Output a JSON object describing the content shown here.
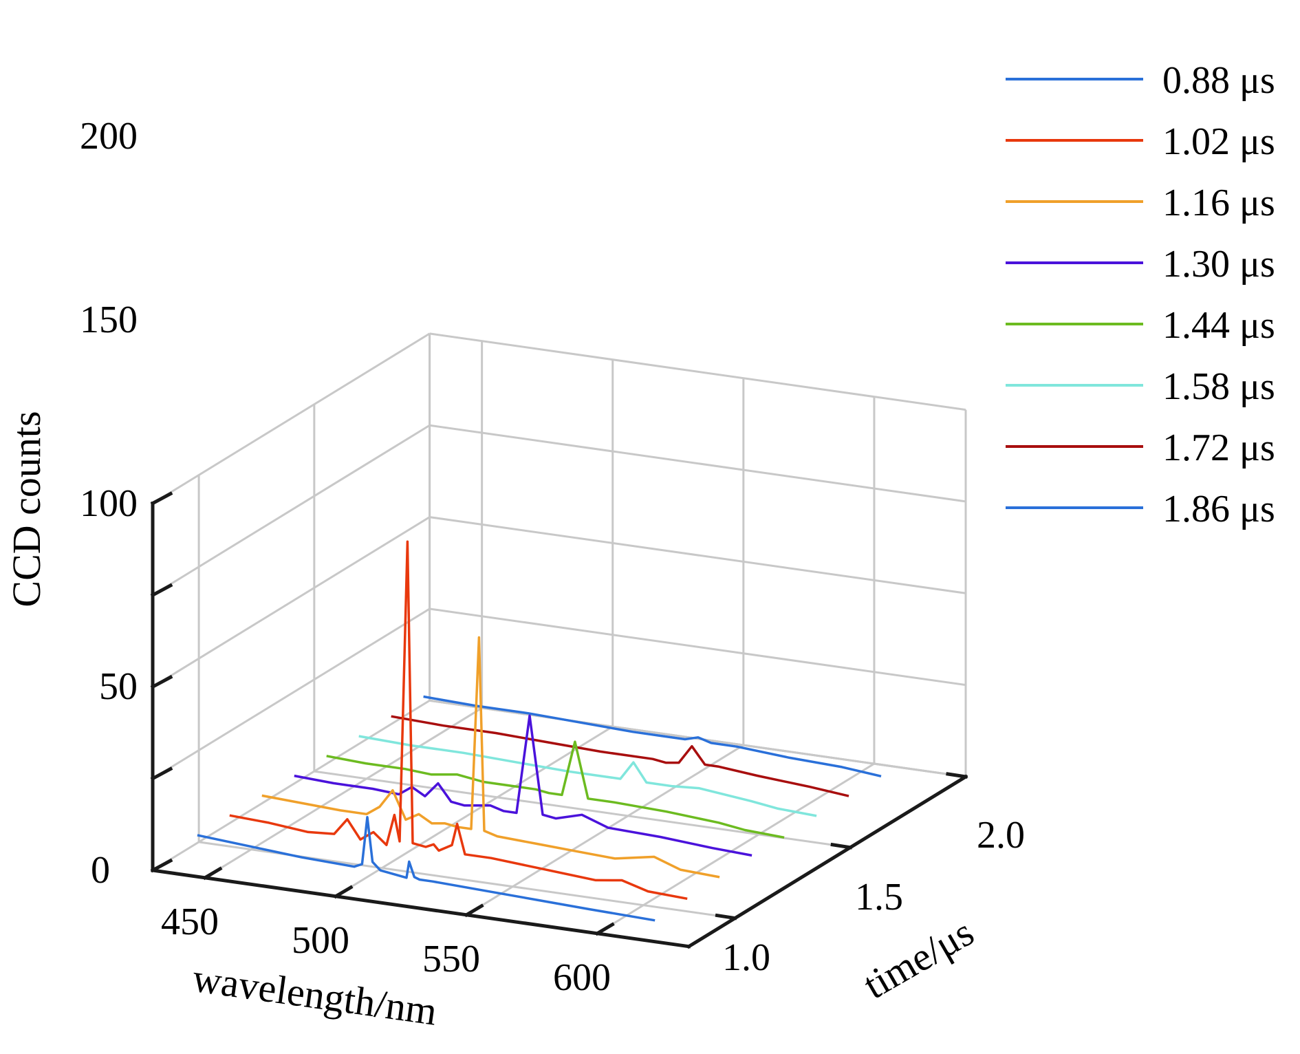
{
  "chart_data": {
    "type": "line",
    "projection": "3d",
    "xlabel": "wavelength/nm",
    "ylabel": "time/μs",
    "zlabel": "CCD counts",
    "x_ticks": [
      "450",
      "500",
      "550",
      "600"
    ],
    "y_ticks": [
      "1.0",
      "1.5",
      "2.0"
    ],
    "z_ticks": [
      "0",
      "50",
      "100",
      "150",
      "200"
    ],
    "xlim": [
      430,
      635
    ],
    "ylim": [
      0.8,
      2.0
    ],
    "zlim": [
      0,
      200
    ],
    "grid": true,
    "legend_position": "top-right",
    "series": [
      {
        "name": "0.88 μs",
        "time": 0.88,
        "color": "#2a70d9",
        "x": [
          440,
          460,
          480,
          500,
          503,
          505,
          507,
          510,
          515,
          520,
          521,
          523,
          525,
          530,
          550,
          570,
          590,
          615
        ],
        "z": [
          15,
          13,
          11,
          10,
          12,
          38,
          14,
          10,
          9,
          8,
          17,
          9,
          8,
          8,
          7,
          6,
          5,
          4
        ]
      },
      {
        "name": "1.02 μs",
        "time": 1.02,
        "color": "#e8380d",
        "x": [
          440,
          455,
          470,
          480,
          485,
          490,
          495,
          500,
          503,
          505,
          508,
          510,
          515,
          518,
          520,
          525,
          527,
          530,
          540,
          560,
          580,
          590,
          600,
          615
        ],
        "z": [
          15,
          14,
          12,
          13,
          22,
          12,
          17,
          11,
          28,
          14,
          178,
          14,
          13,
          15,
          12,
          16,
          28,
          12,
          12,
          10,
          8,
          10,
          6,
          5
        ]
      },
      {
        "name": "1.16 μs",
        "time": 1.16,
        "color": "#f0a02a",
        "x": [
          440,
          455,
          470,
          480,
          485,
          490,
          495,
          500,
          505,
          510,
          515,
          520,
          523,
          525,
          530,
          545,
          560,
          575,
          590,
          600,
          615
        ],
        "z": [
          15,
          14,
          13,
          13,
          18,
          28,
          13,
          17,
          13,
          14,
          13,
          13,
          118,
          13,
          11,
          10,
          9,
          8,
          12,
          7,
          6
        ]
      },
      {
        "name": "1.30 μs",
        "time": 1.3,
        "color": "#4a12db",
        "x": [
          440,
          455,
          470,
          480,
          485,
          490,
          495,
          500,
          505,
          510,
          515,
          520,
          525,
          530,
          535,
          540,
          550,
          560,
          580,
          600,
          615
        ],
        "z": [
          15,
          14,
          14,
          13,
          18,
          14,
          22,
          13,
          12,
          13,
          14,
          12,
          12,
          66,
          13,
          12,
          16,
          11,
          10,
          8,
          7
        ]
      },
      {
        "name": "1.44 μs",
        "time": 1.44,
        "color": "#6cbb20",
        "x": [
          440,
          455,
          470,
          480,
          490,
          500,
          510,
          520,
          525,
          530,
          535,
          540,
          550,
          570,
          590,
          600,
          615
        ],
        "z": [
          15,
          14,
          14,
          13,
          15,
          13,
          13,
          13,
          12,
          12,
          42,
          12,
          12,
          11,
          9,
          7,
          6
        ]
      },
      {
        "name": "1.58 μs",
        "time": 1.58,
        "color": "#80e6dc",
        "x": [
          440,
          460,
          480,
          500,
          520,
          530,
          540,
          545,
          550,
          560,
          570,
          590,
          600,
          615
        ],
        "z": [
          15,
          14,
          14,
          13,
          12,
          12,
          12,
          22,
          12,
          12,
          13,
          10,
          8,
          7
        ]
      },
      {
        "name": "1.72 μs",
        "time": 1.72,
        "color": "#a80e0e",
        "x": [
          440,
          460,
          480,
          500,
          520,
          540,
          545,
          550,
          555,
          560,
          565,
          580,
          600,
          615
        ],
        "z": [
          15,
          14,
          14,
          13,
          12,
          12,
          11,
          12,
          22,
          13,
          13,
          11,
          9,
          7
        ]
      },
      {
        "name": "1.86 μs",
        "time": 1.86,
        "color": "#2a70d9",
        "x": [
          440,
          460,
          480,
          500,
          520,
          530,
          540,
          545,
          550,
          560,
          580,
          600,
          615
        ],
        "z": [
          15,
          14,
          14,
          13,
          12,
          12,
          12,
          14,
          12,
          12,
          10,
          9,
          7
        ]
      }
    ]
  }
}
